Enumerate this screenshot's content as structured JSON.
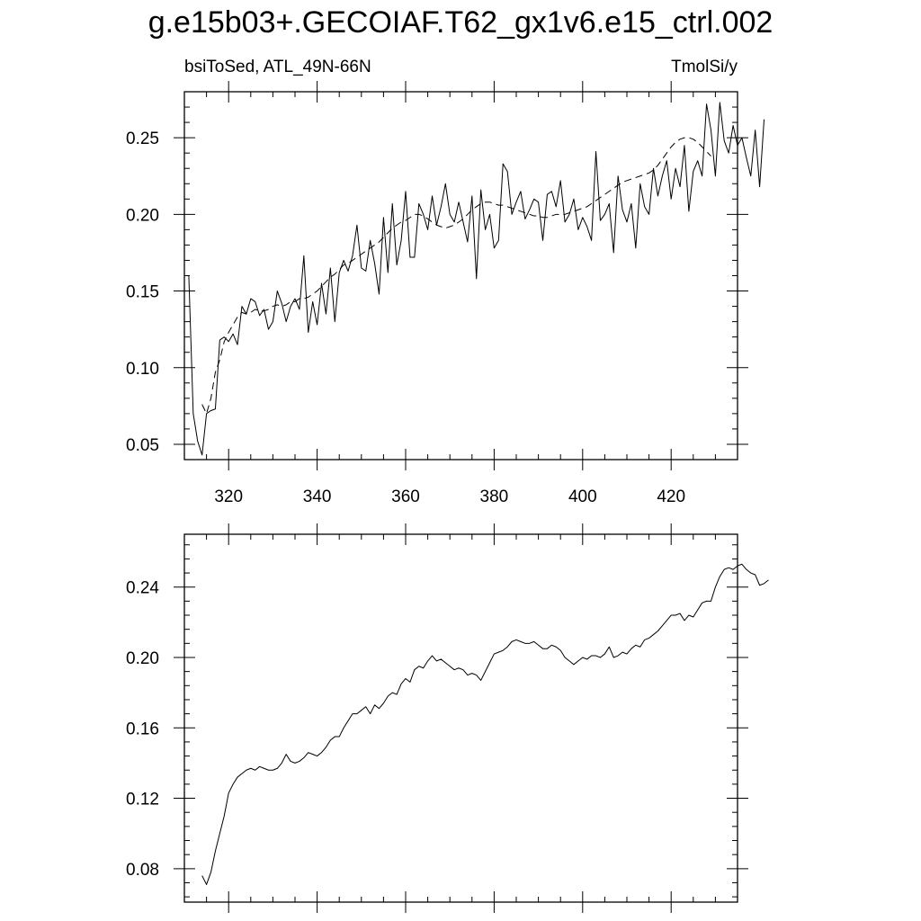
{
  "title": "g.e15b03+.GECOIAF.T62_gx1v6.e15_ctrl.002",
  "left_string": "bsiToSed, ATL_49N-66N",
  "right_string": "TmolSi/y",
  "chart_data": [
    {
      "type": "line",
      "xlim": [
        310,
        435
      ],
      "ylim": [
        0.04,
        0.28
      ],
      "xticks": [
        320,
        340,
        360,
        380,
        400,
        420
      ],
      "xtick_labels": [
        "320",
        "340",
        "360",
        "380",
        "400",
        "420"
      ],
      "yticks": [
        0.05,
        0.1,
        0.15,
        0.2,
        0.25
      ],
      "ytick_labels": [
        "0.05",
        "0.10",
        "0.15",
        "0.20",
        "0.25"
      ],
      "grid": false,
      "series": [
        {
          "style": "solid",
          "x_start": 311,
          "values": [
            0.16,
            0.07,
            0.052,
            0.043,
            0.07,
            0.072,
            0.073,
            0.118,
            0.12,
            0.117,
            0.122,
            0.115,
            0.14,
            0.135,
            0.145,
            0.143,
            0.134,
            0.138,
            0.125,
            0.13,
            0.15,
            0.142,
            0.13,
            0.14,
            0.145,
            0.138,
            0.173,
            0.123,
            0.143,
            0.128,
            0.155,
            0.135,
            0.165,
            0.13,
            0.162,
            0.17,
            0.163,
            0.173,
            0.193,
            0.165,
            0.163,
            0.183,
            0.168,
            0.148,
            0.198,
            0.162,
            0.207,
            0.167,
            0.183,
            0.215,
            0.172,
            0.172,
            0.207,
            0.2,
            0.19,
            0.212,
            0.193,
            0.205,
            0.22,
            0.2,
            0.195,
            0.208,
            0.195,
            0.182,
            0.212,
            0.158,
            0.216,
            0.19,
            0.2,
            0.178,
            0.183,
            0.233,
            0.228,
            0.2,
            0.208,
            0.215,
            0.197,
            0.203,
            0.21,
            0.208,
            0.183,
            0.213,
            0.215,
            0.205,
            0.222,
            0.195,
            0.2,
            0.21,
            0.19,
            0.198,
            0.192,
            0.183,
            0.241,
            0.196,
            0.2,
            0.207,
            0.175,
            0.225,
            0.203,
            0.195,
            0.207,
            0.178,
            0.22,
            0.205,
            0.2,
            0.23,
            0.212,
            0.225,
            0.235,
            0.21,
            0.23,
            0.218,
            0.245,
            0.202,
            0.228,
            0.235,
            0.225,
            0.272,
            0.255,
            0.225,
            0.273,
            0.248,
            0.24,
            0.258,
            0.245,
            0.25,
            0.237,
            0.225,
            0.255,
            0.218,
            0.262
          ]
        },
        {
          "style": "dashed",
          "x_start": 314,
          "values": [
            0.076,
            0.07,
            0.08,
            0.097,
            0.105,
            0.117,
            0.123,
            0.128,
            0.133,
            0.136,
            0.135,
            0.136,
            0.138,
            0.137,
            0.137,
            0.138,
            0.14,
            0.141,
            0.14,
            0.141,
            0.143,
            0.143,
            0.145,
            0.145,
            0.146,
            0.148,
            0.15,
            0.153,
            0.156,
            0.159,
            0.161,
            0.164,
            0.167,
            0.168,
            0.17,
            0.172,
            0.174,
            0.176,
            0.178,
            0.18,
            0.182,
            0.185,
            0.188,
            0.191,
            0.193,
            0.195,
            0.196,
            0.198,
            0.2,
            0.2,
            0.199,
            0.197,
            0.195,
            0.193,
            0.192,
            0.191,
            0.192,
            0.193,
            0.195,
            0.197,
            0.2,
            0.203,
            0.205,
            0.207,
            0.208,
            0.208,
            0.207,
            0.206,
            0.206,
            0.205,
            0.204,
            0.203,
            0.202,
            0.201,
            0.2,
            0.199,
            0.199,
            0.198,
            0.198,
            0.199,
            0.2,
            0.2,
            0.2,
            0.201,
            0.202,
            0.203,
            0.204,
            0.205,
            0.207,
            0.209,
            0.211,
            0.213,
            0.215,
            0.217,
            0.219,
            0.221,
            0.222,
            0.223,
            0.224,
            0.225,
            0.226,
            0.227,
            0.229,
            0.232,
            0.236,
            0.24,
            0.244,
            0.247,
            0.249,
            0.25,
            0.25,
            0.249,
            0.247,
            0.244,
            0.241,
            0.238
          ]
        }
      ]
    },
    {
      "type": "line",
      "xlim": [
        310,
        435
      ],
      "ylim": [
        0.061,
        0.27
      ],
      "xticks": [
        320,
        340,
        360,
        380,
        400,
        420
      ],
      "xtick_labels": [],
      "yticks": [
        0.08,
        0.12,
        0.16,
        0.2,
        0.24
      ],
      "ytick_labels": [
        "0.08",
        "0.12",
        "0.16",
        "0.20",
        "0.24"
      ],
      "grid": false,
      "series": [
        {
          "style": "solid",
          "x_start": 314,
          "values": [
            0.076,
            0.071,
            0.078,
            0.09,
            0.1,
            0.11,
            0.123,
            0.128,
            0.132,
            0.134,
            0.136,
            0.137,
            0.136,
            0.138,
            0.137,
            0.136,
            0.136,
            0.137,
            0.14,
            0.145,
            0.141,
            0.14,
            0.141,
            0.143,
            0.146,
            0.145,
            0.144,
            0.146,
            0.149,
            0.153,
            0.155,
            0.155,
            0.16,
            0.164,
            0.168,
            0.168,
            0.17,
            0.172,
            0.168,
            0.173,
            0.171,
            0.174,
            0.178,
            0.18,
            0.179,
            0.185,
            0.188,
            0.186,
            0.193,
            0.195,
            0.194,
            0.198,
            0.201,
            0.198,
            0.199,
            0.197,
            0.195,
            0.193,
            0.194,
            0.193,
            0.19,
            0.191,
            0.19,
            0.187,
            0.192,
            0.197,
            0.202,
            0.203,
            0.204,
            0.206,
            0.209,
            0.21,
            0.209,
            0.208,
            0.208,
            0.209,
            0.207,
            0.205,
            0.205,
            0.207,
            0.206,
            0.204,
            0.2,
            0.198,
            0.196,
            0.198,
            0.2,
            0.199,
            0.201,
            0.201,
            0.2,
            0.202,
            0.206,
            0.2,
            0.201,
            0.203,
            0.202,
            0.205,
            0.207,
            0.206,
            0.21,
            0.211,
            0.213,
            0.215,
            0.218,
            0.221,
            0.224,
            0.224,
            0.225,
            0.221,
            0.224,
            0.223,
            0.227,
            0.231,
            0.232,
            0.232,
            0.24,
            0.246,
            0.25,
            0.251,
            0.25,
            0.252,
            0.253,
            0.25,
            0.248,
            0.247,
            0.241,
            0.242,
            0.244
          ]
        }
      ]
    }
  ]
}
